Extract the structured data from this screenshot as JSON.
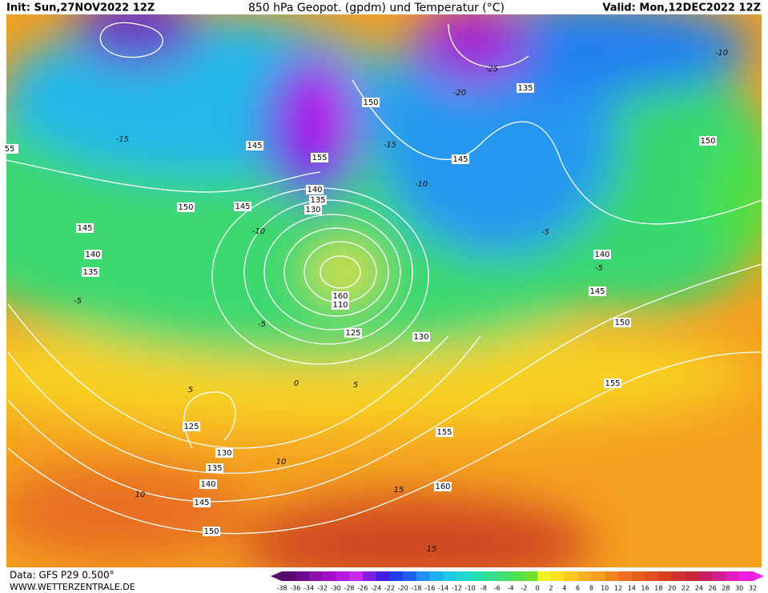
{
  "header": {
    "init": "Init: Sun,27NOV2022 12Z",
    "title": "850 hPa Geopot. (gpdm) und Temperatur (°C)",
    "valid": "Valid: Mon,12DEC2022 12Z"
  },
  "footer": {
    "data": "Data: GFS P29 0.500°",
    "site": "WWW.WETTERZENTRALE.DE"
  },
  "colorbar": {
    "ticks": [
      -38,
      -36,
      -34,
      -32,
      -30,
      -28,
      -26,
      -24,
      -22,
      -20,
      -18,
      -16,
      -14,
      -12,
      -10,
      -8,
      -6,
      -4,
      -2,
      0,
      2,
      4,
      6,
      8,
      10,
      12,
      14,
      16,
      18,
      20,
      22,
      24,
      26,
      28,
      30,
      32
    ],
    "colors": [
      "#5a0a6e",
      "#6e0a8c",
      "#8a10a8",
      "#a010c8",
      "#b818e0",
      "#c828f0",
      "#8020e8",
      "#4020e0",
      "#2040f0",
      "#2060f8",
      "#2090f8",
      "#20b0f0",
      "#20c8e8",
      "#20d8d0",
      "#20e0b0",
      "#30e090",
      "#40e070",
      "#50e050",
      "#70e030",
      "#f0f020",
      "#f8e020",
      "#f8c820",
      "#f8b020",
      "#f8a020",
      "#f08820",
      "#f07020",
      "#e86020",
      "#e05020",
      "#d84020",
      "#d03030",
      "#c82838",
      "#c82060",
      "#d02090",
      "#e020c0",
      "#f020e0"
    ]
  },
  "contour_labels": {
    "geopotential": [
      "55",
      "145",
      "155",
      "150",
      "135",
      "150",
      "145",
      "150",
      "145",
      "140",
      "135",
      "130",
      "145",
      "140",
      "135",
      "160",
      "110",
      "125",
      "130",
      "140",
      "145",
      "150",
      "155",
      "125",
      "130",
      "135",
      "140",
      "145",
      "150",
      "155",
      "160"
    ],
    "temperature": [
      "-15",
      "-15",
      "-10",
      "-10",
      "-10",
      "-5",
      "-5",
      "-5",
      "0",
      "5",
      "5",
      "10",
      "10",
      "15",
      "15",
      "-25",
      "-20",
      "-5"
    ]
  }
}
